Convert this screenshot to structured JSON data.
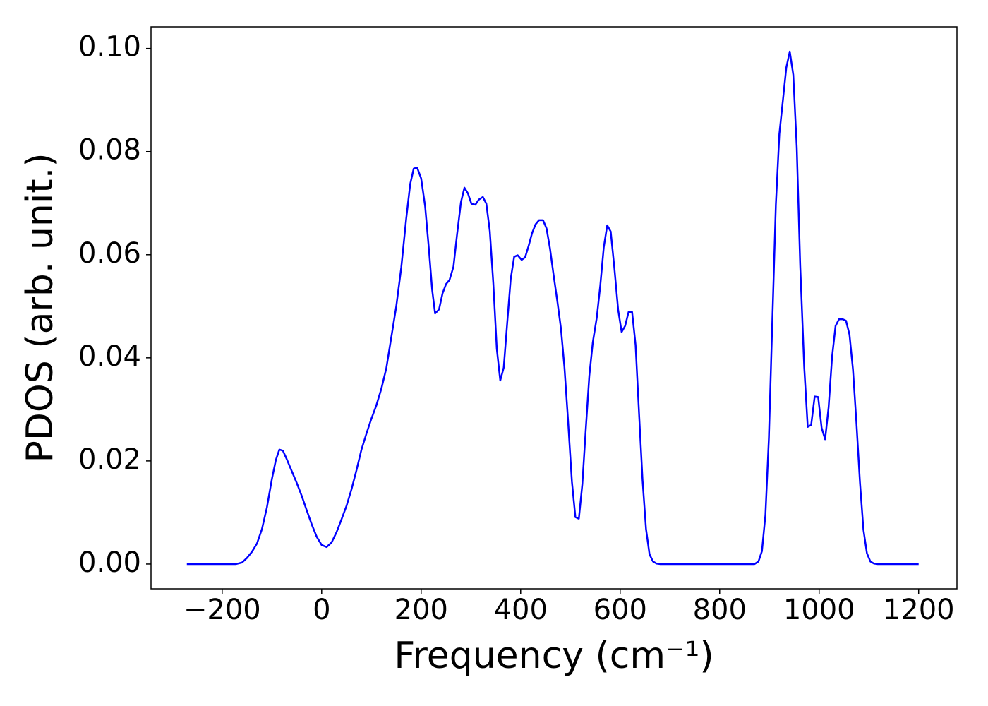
{
  "chart_data": {
    "type": "line",
    "xlabel": "Frequency (cm⁻¹)",
    "ylabel": "PDOS (arb. unit.)",
    "xlim": [
      -343,
      1277
    ],
    "ylim": [
      -0.0048,
      0.1042
    ],
    "xticks": [
      {
        "value": -200,
        "label": "−200"
      },
      0,
      200,
      400,
      600,
      800,
      1000,
      1200
    ],
    "yticks": [
      {
        "value": 0,
        "label": "0.00"
      },
      {
        "value": 0.02,
        "label": "0.02"
      },
      {
        "value": 0.04,
        "label": "0.04"
      },
      {
        "value": 0.06,
        "label": "0.06"
      },
      {
        "value": 0.08,
        "label": "0.08"
      },
      {
        "value": 0.1,
        "label": "0.10"
      }
    ],
    "grid": false,
    "color": "#0000ff",
    "x": [
      -271,
      -172,
      -160,
      -150,
      -140,
      -130,
      -120,
      -110,
      -100,
      -92,
      -85,
      -78,
      -70,
      -60,
      -50,
      -40,
      -30,
      -20,
      -10,
      0,
      10,
      20,
      30,
      40,
      50,
      60,
      70,
      80,
      90,
      100,
      110,
      120,
      130,
      140,
      150,
      160,
      170,
      178,
      185,
      192,
      200,
      208,
      216,
      222,
      228,
      236,
      243,
      250,
      257,
      265,
      272,
      280,
      287,
      294,
      301,
      309,
      316,
      324,
      331,
      338,
      345,
      352,
      359,
      366,
      373,
      380,
      387,
      394,
      402,
      409,
      416,
      423,
      430,
      437,
      445,
      452,
      459,
      466,
      474,
      481,
      488,
      495,
      503,
      510,
      517,
      524,
      531,
      538,
      545,
      553,
      560,
      567,
      574,
      581,
      588,
      596,
      603,
      610,
      617,
      624,
      631,
      638,
      645,
      652,
      659,
      666,
      673,
      680,
      870,
      878,
      885,
      892,
      899,
      906,
      913,
      920,
      927,
      934,
      941,
      948,
      955,
      962,
      970,
      977,
      984,
      991,
      998,
      1005,
      1012,
      1019,
      1026,
      1033,
      1040,
      1047,
      1054,
      1061,
      1068,
      1075,
      1082,
      1089,
      1096,
      1103,
      1110,
      1117,
      1200
    ],
    "values": [
      0,
      0,
      0.0003,
      0.0012,
      0.0024,
      0.004,
      0.0068,
      0.011,
      0.0165,
      0.0202,
      0.0222,
      0.022,
      0.0203,
      0.018,
      0.0157,
      0.0132,
      0.0104,
      0.0077,
      0.0053,
      0.0037,
      0.0033,
      0.0042,
      0.0062,
      0.0087,
      0.0113,
      0.0145,
      0.0182,
      0.0222,
      0.0253,
      0.0282,
      0.0308,
      0.034,
      0.038,
      0.044,
      0.05,
      0.0575,
      0.067,
      0.0737,
      0.0767,
      0.0769,
      0.0748,
      0.0694,
      0.0606,
      0.0533,
      0.0486,
      0.0494,
      0.0525,
      0.0543,
      0.0551,
      0.0577,
      0.0638,
      0.0702,
      0.073,
      0.0719,
      0.0699,
      0.0697,
      0.0707,
      0.0712,
      0.0699,
      0.0646,
      0.0545,
      0.0418,
      0.0356,
      0.0381,
      0.0468,
      0.0553,
      0.0596,
      0.0599,
      0.059,
      0.0595,
      0.0617,
      0.0642,
      0.0659,
      0.0667,
      0.0667,
      0.0651,
      0.0612,
      0.0562,
      0.0508,
      0.0457,
      0.0382,
      0.0282,
      0.016,
      0.0091,
      0.0088,
      0.0155,
      0.0263,
      0.0365,
      0.043,
      0.0478,
      0.054,
      0.0614,
      0.0657,
      0.0645,
      0.0578,
      0.0493,
      0.045,
      0.0462,
      0.0489,
      0.0489,
      0.0425,
      0.0292,
      0.0163,
      0.0068,
      0.0019,
      0.0005,
      0.0001,
      0,
      0,
      0.0005,
      0.0025,
      0.0095,
      0.0245,
      0.0475,
      0.0697,
      0.0834,
      0.0898,
      0.0963,
      0.0994,
      0.0949,
      0.0808,
      0.0578,
      0.0382,
      0.0266,
      0.027,
      0.0325,
      0.0324,
      0.0264,
      0.0242,
      0.0304,
      0.0402,
      0.0462,
      0.0475,
      0.0475,
      0.0472,
      0.0445,
      0.0377,
      0.0273,
      0.0159,
      0.0067,
      0.0021,
      0.0005,
      0.0001,
      0,
      0
    ]
  }
}
